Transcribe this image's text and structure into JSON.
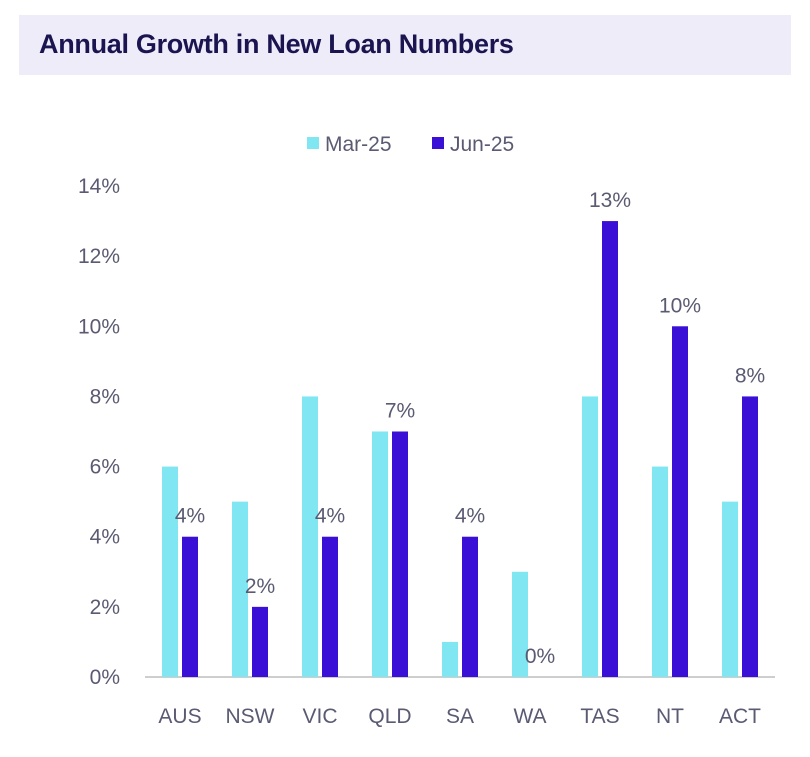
{
  "header": {
    "title": "Annual Growth in New Loan Numbers"
  },
  "colors": {
    "header_bg": "#eeecf8",
    "series1": "#7fe6f2",
    "series2": "#3a0fd6",
    "axis": "#bdbdbd",
    "text": "#5a5a72"
  },
  "chart_data": {
    "type": "bar",
    "title": "",
    "xlabel": "",
    "ylabel": "",
    "categories": [
      "AUS",
      "NSW",
      "VIC",
      "QLD",
      "SA",
      "WA",
      "TAS",
      "NT",
      "ACT"
    ],
    "series": [
      {
        "name": "Mar-25",
        "values": [
          6,
          5,
          8,
          7,
          1,
          3,
          8,
          6,
          5
        ]
      },
      {
        "name": "Jun-25",
        "values": [
          4,
          2,
          4,
          7,
          4,
          0,
          13,
          10,
          8
        ],
        "data_labels": [
          "4%",
          "2%",
          "4%",
          "7%",
          "4%",
          "0%",
          "13%",
          "10%",
          "8%"
        ]
      }
    ],
    "yticks": [
      "0%",
      "2%",
      "4%",
      "6%",
      "8%",
      "10%",
      "12%",
      "14%"
    ],
    "ylim": [
      0,
      14
    ],
    "legend_position": "top-center",
    "grid": false
  }
}
